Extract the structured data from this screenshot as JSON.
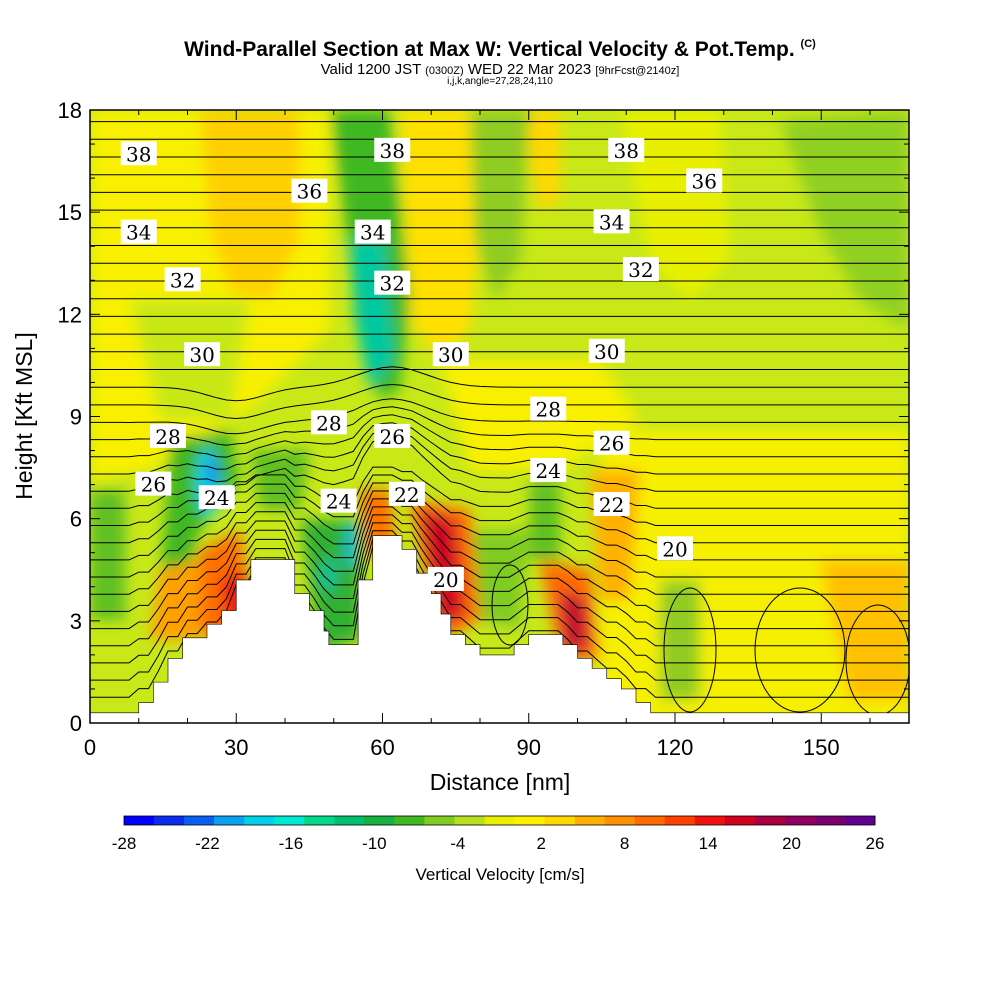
{
  "header": {
    "title": "Wind-Parallel Section at Max W: Vertical Velocity & Pot.Temp.",
    "title_mark": "(C)",
    "valid_prefix": "Valid 1200 JST",
    "valid_utc": "(0300Z)",
    "valid_date": "WED 22 Mar 2023",
    "forecast": "[9hrFcst@2140z]",
    "params": "i,j,k,angle=27,28,24,110"
  },
  "chart_data": {
    "type": "heatmap",
    "xlabel": "Distance [nm]",
    "ylabel": "Height [Kft MSL]",
    "xlim": [
      0,
      168
    ],
    "ylim": [
      0,
      18
    ],
    "xticks": [
      0,
      30,
      60,
      90,
      120,
      150
    ],
    "yticks": [
      0,
      3,
      6,
      9,
      12,
      15,
      18
    ],
    "colorbar": {
      "title": "Vertical Velocity [cm/s]",
      "ticks": [
        "-28",
        "-22",
        "-16",
        "-10",
        "-4",
        "2",
        "8",
        "14",
        "20",
        "26"
      ],
      "colors": [
        "#0000ff",
        "#0a2bf0",
        "#0a5ff0",
        "#0aa0f0",
        "#00d0e8",
        "#00e8d0",
        "#00d88a",
        "#00c070",
        "#18b040",
        "#40b820",
        "#80cc20",
        "#b8e020",
        "#e8f000",
        "#fff000",
        "#ffd800",
        "#ffb000",
        "#ff9000",
        "#ff6a00",
        "#ff4000",
        "#f01010",
        "#d00020",
        "#a80040",
        "#900060",
        "#780070",
        "#600090"
      ]
    },
    "terrain_top_kft": [
      [
        0,
        0.3
      ],
      [
        10,
        0.3
      ],
      [
        10,
        0.6
      ],
      [
        13,
        0.6
      ],
      [
        13,
        1.2
      ],
      [
        16,
        1.2
      ],
      [
        16,
        1.9
      ],
      [
        19,
        1.9
      ],
      [
        19,
        2.5
      ],
      [
        24,
        2.5
      ],
      [
        24,
        2.9
      ],
      [
        27,
        2.9
      ],
      [
        27,
        3.3
      ],
      [
        30,
        3.3
      ],
      [
        30,
        4.2
      ],
      [
        33,
        4.2
      ],
      [
        33,
        4.8
      ],
      [
        36,
        4.8
      ],
      [
        36,
        4.8
      ],
      [
        42,
        4.8
      ],
      [
        42,
        3.8
      ],
      [
        45,
        3.8
      ],
      [
        45,
        3.3
      ],
      [
        48,
        3.3
      ],
      [
        48,
        2.7
      ],
      [
        49,
        2.7
      ],
      [
        49,
        2.3
      ],
      [
        55,
        2.3
      ],
      [
        55,
        4.2
      ],
      [
        58,
        4.2
      ],
      [
        58,
        5.5
      ],
      [
        64,
        5.5
      ],
      [
        64,
        5.1
      ],
      [
        67,
        5.1
      ],
      [
        67,
        4.4
      ],
      [
        70,
        4.4
      ],
      [
        70,
        3.8
      ],
      [
        72,
        3.8
      ],
      [
        72,
        3.2
      ],
      [
        74,
        3.2
      ],
      [
        74,
        2.6
      ],
      [
        77,
        2.6
      ],
      [
        77,
        2.3
      ],
      [
        80,
        2.3
      ],
      [
        80,
        2.0
      ],
      [
        87,
        2.0
      ],
      [
        87,
        2.3
      ],
      [
        90,
        2.3
      ],
      [
        90,
        2.6
      ],
      [
        97,
        2.6
      ],
      [
        97,
        2.3
      ],
      [
        100,
        2.3
      ],
      [
        100,
        1.9
      ],
      [
        103,
        1.9
      ],
      [
        103,
        1.6
      ],
      [
        106,
        1.6
      ],
      [
        106,
        1.3
      ],
      [
        109,
        1.3
      ],
      [
        109,
        1.0
      ],
      [
        112,
        1.0
      ],
      [
        112,
        0.6
      ],
      [
        115,
        0.6
      ],
      [
        115,
        0.3
      ],
      [
        168,
        0.3
      ]
    ],
    "isentrope_labels": [
      {
        "text": "38",
        "x": 10,
        "y": 16.7
      },
      {
        "text": "38",
        "x": 62,
        "y": 16.8
      },
      {
        "text": "38",
        "x": 110,
        "y": 16.8
      },
      {
        "text": "36",
        "x": 45,
        "y": 15.6
      },
      {
        "text": "36",
        "x": 126,
        "y": 15.9
      },
      {
        "text": "34",
        "x": 10,
        "y": 14.4
      },
      {
        "text": "34",
        "x": 58,
        "y": 14.4
      },
      {
        "text": "34",
        "x": 107,
        "y": 14.7
      },
      {
        "text": "32",
        "x": 19,
        "y": 13.0
      },
      {
        "text": "32",
        "x": 62,
        "y": 12.9
      },
      {
        "text": "32",
        "x": 113,
        "y": 13.3
      },
      {
        "text": "30",
        "x": 23,
        "y": 10.8
      },
      {
        "text": "30",
        "x": 74,
        "y": 10.8
      },
      {
        "text": "30",
        "x": 106,
        "y": 10.9
      },
      {
        "text": "28",
        "x": 16,
        "y": 8.4
      },
      {
        "text": "28",
        "x": 49,
        "y": 8.8
      },
      {
        "text": "28",
        "x": 94,
        "y": 9.2
      },
      {
        "text": "26",
        "x": 13,
        "y": 7.0
      },
      {
        "text": "26",
        "x": 62,
        "y": 8.4
      },
      {
        "text": "26",
        "x": 107,
        "y": 8.2
      },
      {
        "text": "24",
        "x": 26,
        "y": 6.6
      },
      {
        "text": "24",
        "x": 51,
        "y": 6.5
      },
      {
        "text": "24",
        "x": 94,
        "y": 7.4
      },
      {
        "text": "22",
        "x": 65,
        "y": 6.7
      },
      {
        "text": "22",
        "x": 107,
        "y": 6.4
      },
      {
        "text": "20",
        "x": 73,
        "y": 4.2
      },
      {
        "text": "20",
        "x": 120,
        "y": 5.1
      }
    ]
  }
}
